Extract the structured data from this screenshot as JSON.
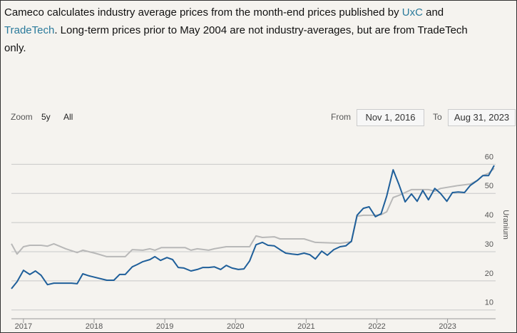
{
  "intro": [
    "Cameco calculates industry average prices from the month-end prices published by ",
    "UxC",
    " and ",
    "TradeTech",
    ". Long-term prices prior to May 2004 are not industry-averages, but are from TradeTech only."
  ],
  "range_selector": {
    "zoom_label": "Zoom",
    "buttons": [
      "5y",
      "All"
    ],
    "from_label": "From",
    "from": "Nov 1, 2016",
    "to_label": "To",
    "to": "Aug 31, 2023"
  },
  "chart_data": {
    "type": "line",
    "y_label": "Uranium",
    "xlim": [
      2016.83,
      2023.67
    ],
    "xticks": [
      2017,
      2018,
      2019,
      2020,
      2021,
      2022,
      2023
    ],
    "ylim": [
      7,
      64
    ],
    "yticks": [
      10,
      20,
      30,
      40,
      50,
      60
    ],
    "grid": true,
    "series": [
      {
        "color": "#b8b8b8",
        "x": [
          2016.83,
          2016.91,
          2017.0,
          2017.09,
          2017.25,
          2017.34,
          2017.43,
          2017.6,
          2017.76,
          2017.84,
          2018.01,
          2018.18,
          2018.44,
          2018.54,
          2018.69,
          2018.79,
          2018.86,
          2018.95,
          2019.29,
          2019.37,
          2019.46,
          2019.62,
          2019.7,
          2019.87,
          2020.04,
          2020.2,
          2020.29,
          2020.38,
          2020.55,
          2020.63,
          2020.97,
          2021.13,
          2021.48,
          2021.64,
          2021.72,
          2021.81,
          2021.98,
          2022.06,
          2022.14,
          2022.23,
          2022.31,
          2022.49,
          2022.73,
          2022.82,
          2022.9,
          2023.15,
          2023.32,
          2023.42,
          2023.5,
          2023.58,
          2023.66
        ],
        "values": [
          32.7,
          29.2,
          31.7,
          32.2,
          32.2,
          31.9,
          32.7,
          31.0,
          29.7,
          30.5,
          29.5,
          28.3,
          28.3,
          30.7,
          30.5,
          31.0,
          30.5,
          31.4,
          31.4,
          30.5,
          31.0,
          30.5,
          31.0,
          31.7,
          31.7,
          31.7,
          35.4,
          34.9,
          35.1,
          34.4,
          34.4,
          33.2,
          32.9,
          33.4,
          42.2,
          42.5,
          42.5,
          42.7,
          43.7,
          48.6,
          49.3,
          51.3,
          51.3,
          50.8,
          51.7,
          52.7,
          53.2,
          54.4,
          56.1,
          56.9,
          58.6
        ]
      },
      {
        "color": "#1f5f9a",
        "x": [
          2016.83,
          2016.91,
          2017.0,
          2017.09,
          2017.17,
          2017.25,
          2017.34,
          2017.43,
          2017.68,
          2017.76,
          2017.84,
          2017.93,
          2018.18,
          2018.28,
          2018.36,
          2018.44,
          2018.54,
          2018.61,
          2018.69,
          2018.79,
          2018.86,
          2018.94,
          2019.03,
          2019.11,
          2019.19,
          2019.27,
          2019.37,
          2019.46,
          2019.54,
          2019.62,
          2019.7,
          2019.79,
          2019.87,
          2019.95,
          2020.04,
          2020.12,
          2020.2,
          2020.29,
          2020.38,
          2020.46,
          2020.55,
          2020.63,
          2020.71,
          2020.8,
          2020.88,
          2020.97,
          2021.05,
          2021.13,
          2021.22,
          2021.3,
          2021.39,
          2021.48,
          2021.56,
          2021.64,
          2021.72,
          2021.81,
          2021.89,
          2021.98,
          2022.06,
          2022.14,
          2022.23,
          2022.31,
          2022.4,
          2022.49,
          2022.57,
          2022.65,
          2022.73,
          2022.82,
          2022.9,
          2022.99,
          2023.07,
          2023.15,
          2023.24,
          2023.32,
          2023.42,
          2023.5,
          2023.58,
          2023.66
        ],
        "values": [
          17.3,
          19.7,
          23.6,
          22.2,
          23.4,
          21.9,
          18.7,
          19.2,
          19.2,
          19.0,
          22.4,
          21.7,
          20.2,
          20.2,
          22.2,
          22.2,
          24.8,
          25.6,
          26.6,
          27.3,
          28.3,
          27.0,
          28.0,
          27.3,
          24.6,
          24.4,
          23.4,
          23.9,
          24.6,
          24.6,
          24.8,
          23.9,
          25.3,
          24.4,
          23.9,
          24.1,
          26.8,
          32.4,
          33.2,
          32.2,
          32.0,
          30.7,
          29.5,
          29.2,
          29.0,
          29.5,
          29.0,
          27.5,
          30.2,
          28.8,
          30.7,
          31.7,
          32.0,
          33.6,
          42.5,
          44.9,
          45.4,
          42.0,
          43.0,
          49.1,
          58.1,
          53.2,
          47.1,
          49.8,
          47.3,
          51.0,
          47.8,
          51.7,
          50.0,
          47.3,
          50.3,
          50.5,
          50.3,
          52.7,
          54.4,
          56.1,
          56.1,
          59.6
        ]
      }
    ]
  }
}
